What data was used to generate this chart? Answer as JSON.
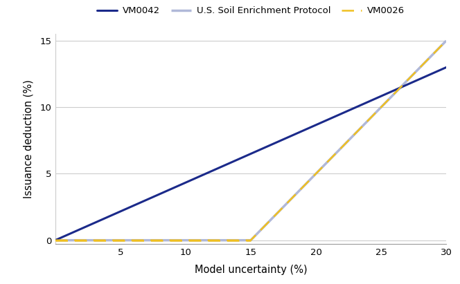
{
  "xlabel": "Model uncertainty (%)",
  "ylabel": "Issuance deduction (%)",
  "xlim": [
    0,
    30
  ],
  "ylim": [
    -0.3,
    15.5
  ],
  "xticks": [
    5,
    10,
    15,
    20,
    25,
    30
  ],
  "yticks": [
    0,
    5,
    10,
    15
  ],
  "vm0042_color": "#1b2a8a",
  "vm0042_label": "VM0042",
  "vm0042_slope": 0.4333,
  "soil_color": "#b0b8d8",
  "soil_label": "U.S. Soil Enrichment Protocol",
  "soil_threshold": 15,
  "soil_slope": 1.0,
  "vm0026_color": "#f0c020",
  "vm0026_label": "VM0026",
  "vm0026_threshold": 15,
  "vm0026_slope": 1.0,
  "background_color": "#ffffff",
  "grid_color": "#cccccc",
  "legend_fontsize": 9.5,
  "axis_label_fontsize": 10.5,
  "tick_fontsize": 9.5
}
